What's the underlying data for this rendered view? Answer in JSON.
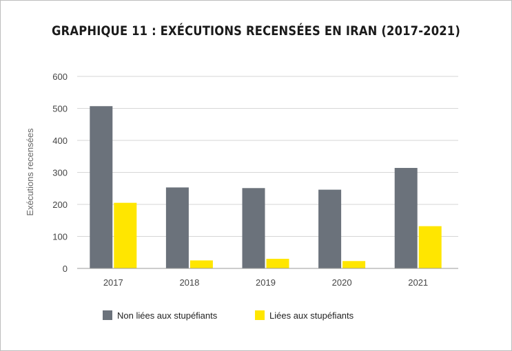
{
  "title": "GRAPHIQUE 11 :  EXÉCUTIONS RECENSÉES EN IRAN (2017-2021)",
  "chart_data": {
    "type": "bar",
    "title": "GRAPHIQUE 11 :  EXÉCUTIONS RECENSÉES EN IRAN (2017-2021)",
    "xlabel": "",
    "ylabel": "Exécutions recensées",
    "categories": [
      "2017",
      "2018",
      "2019",
      "2020",
      "2021"
    ],
    "ylim": [
      0,
      600
    ],
    "yticks": [
      "0",
      "100",
      "200",
      "300",
      "400",
      "500",
      "600"
    ],
    "grid": true,
    "legend_position": "bottom",
    "series": [
      {
        "name": "Non liées aux stupéfiants",
        "color": "#6b727b",
        "values": [
          507,
          253,
          251,
          246,
          314
        ]
      },
      {
        "name": "Liées aux stupéfiants",
        "color": "#ffe600",
        "values": [
          205,
          25,
          30,
          23,
          132
        ]
      }
    ]
  }
}
